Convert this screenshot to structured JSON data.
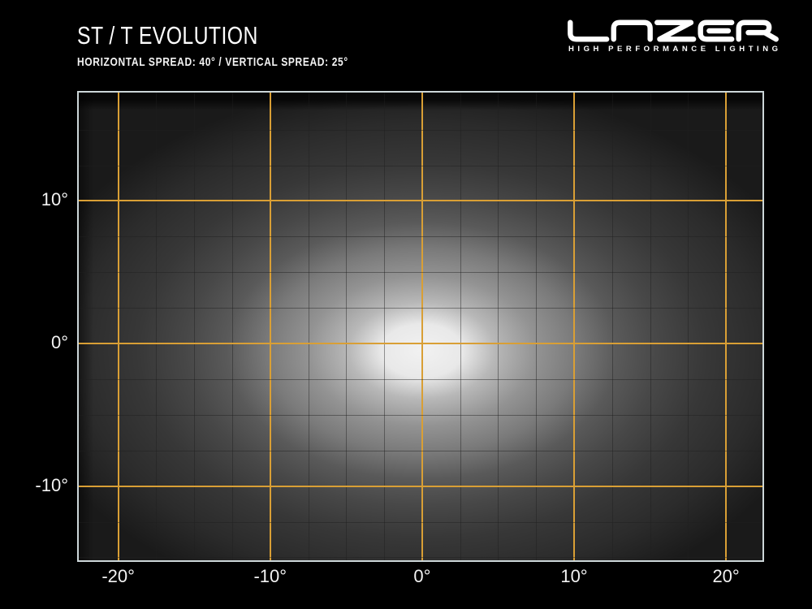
{
  "header": {
    "title": "ST / T EVOLUTION",
    "subtitle": "HORIZONTAL SPREAD: 40° / VERTICAL SPREAD: 25°",
    "brand": {
      "name": "LAZER",
      "tagline": "HIGH PERFORMANCE LIGHTING"
    }
  },
  "chart_data": {
    "type": "heatmap",
    "title": "ST / T EVOLUTION beam intensity pattern",
    "x_axis": {
      "unit": "degrees",
      "range": [
        -22.6,
        22.4
      ],
      "major_ticks": [
        -20,
        -10,
        0,
        10,
        20
      ],
      "tick_labels": [
        "-20°",
        "-10°",
        "0°",
        "10°",
        "20°"
      ],
      "minor_step": 2.5
    },
    "y_axis": {
      "unit": "degrees",
      "range": [
        -15.2,
        17.6
      ],
      "major_ticks": [
        10,
        0,
        -10
      ],
      "tick_labels": [
        "10°",
        "0°",
        "-10°"
      ],
      "minor_step": 2.5
    },
    "beam": {
      "center_deg": [
        0,
        -0.5
      ],
      "horizontal_spread_deg": 40,
      "vertical_spread_deg": 25,
      "peak_color": "#f2f2f2",
      "falloff_color": "#1a1a1a"
    },
    "grid": {
      "major_color": "#d99f35",
      "minor_color": "rgba(30,30,30,0.45)",
      "border_color": "#ccd6d8"
    },
    "legend": "none",
    "grid_on": true
  }
}
